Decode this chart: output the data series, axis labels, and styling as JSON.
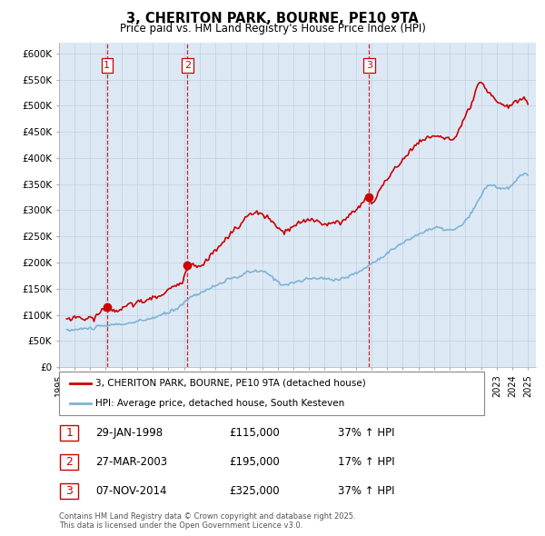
{
  "title": "3, CHERITON PARK, BOURNE, PE10 9TA",
  "subtitle": "Price paid vs. HM Land Registry's House Price Index (HPI)",
  "legend_line1": "3, CHERITON PARK, BOURNE, PE10 9TA (detached house)",
  "legend_line2": "HPI: Average price, detached house, South Kesteven",
  "footer": "Contains HM Land Registry data © Crown copyright and database right 2025.\nThis data is licensed under the Open Government Licence v3.0.",
  "sale_color": "#cc0000",
  "hpi_color": "#7fb3d3",
  "vline_color": "#cc0000",
  "ylim": [
    0,
    620000
  ],
  "yticks": [
    0,
    50000,
    100000,
    150000,
    200000,
    250000,
    300000,
    350000,
    400000,
    450000,
    500000,
    550000,
    600000
  ],
  "ytick_labels": [
    "£0",
    "£50K",
    "£100K",
    "£150K",
    "£200K",
    "£250K",
    "£300K",
    "£350K",
    "£400K",
    "£450K",
    "£500K",
    "£550K",
    "£600K"
  ],
  "sales": [
    {
      "label": "1",
      "date_str": "29-JAN-1998",
      "date_num": 1998.08,
      "price": 115000,
      "pct": "37% ↑ HPI"
    },
    {
      "label": "2",
      "date_str": "27-MAR-2003",
      "date_num": 2003.23,
      "price": 195000,
      "pct": "17% ↑ HPI"
    },
    {
      "label": "3",
      "date_str": "07-NOV-2014",
      "date_num": 2014.85,
      "price": 325000,
      "pct": "37% ↑ HPI"
    }
  ],
  "background_color": "#dce9f5",
  "grid_color": "#c0d0e0",
  "panel_bg": "#e8f0f8"
}
